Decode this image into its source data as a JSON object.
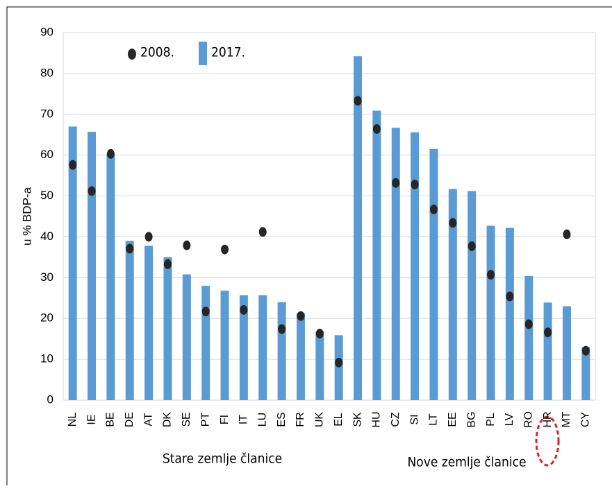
{
  "chart_data": {
    "type": "bar",
    "y_label": "u % BDP-a",
    "categories": [
      "NL",
      "IE",
      "BE",
      "DE",
      "AT",
      "DK",
      "SE",
      "PT",
      "FI",
      "IT",
      "LU",
      "ES",
      "FR",
      "UK",
      "EL",
      "SK",
      "HU",
      "CZ",
      "SI",
      "LT",
      "EE",
      "BG",
      "PL",
      "LV",
      "RO",
      "HR",
      "MT",
      "CY"
    ],
    "series": [
      {
        "name": "2008.",
        "color": "#262626",
        "mark": "dot",
        "values": [
          57.6,
          51.2,
          60.3,
          37.1,
          40,
          33.3,
          37.9,
          21.7,
          36.9,
          22.1,
          41.2,
          17.4,
          20.6,
          16.3,
          9.2,
          73.3,
          66.4,
          53.2,
          52.8,
          46.7,
          43.4,
          37.7,
          30.7,
          25.4,
          18.6,
          16.6,
          40.6,
          12.1
        ]
      },
      {
        "name": "2017.",
        "color": "#5b9bd5",
        "mark": "bar",
        "values": [
          67,
          65.7,
          60.3,
          39,
          37.8,
          35,
          30.8,
          28,
          26.8,
          25.7,
          25.7,
          24,
          21.3,
          16.8,
          15.9,
          84.2,
          70.9,
          66.7,
          65.6,
          61.5,
          51.7,
          51.2,
          42.7,
          42.2,
          30.4,
          23.9,
          23,
          13
        ]
      }
    ],
    "group_labels": [
      "Stare zemlje članice",
      "Nove zemlje članice"
    ],
    "ylim": [
      0,
      90
    ],
    "yticks": [
      0,
      10,
      20,
      30,
      40,
      50,
      60,
      70,
      80,
      90
    ],
    "grid": true
  }
}
